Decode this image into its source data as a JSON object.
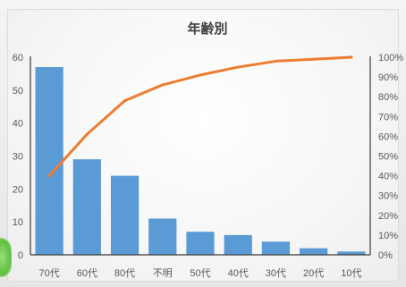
{
  "chart_data": {
    "type": "bar",
    "title": "年齢別",
    "xlabel": "",
    "ylabel": "",
    "categories": [
      "70代",
      "60代",
      "80代",
      "不明",
      "50代",
      "40代",
      "30代",
      "20代",
      "10代"
    ],
    "series": [
      {
        "kind": "bar",
        "values": [
          57,
          29,
          24,
          11,
          7,
          6,
          4,
          2,
          1
        ]
      },
      {
        "kind": "line",
        "axis": "secondary",
        "values": [
          0.4,
          0.61,
          0.78,
          0.86,
          0.91,
          0.95,
          0.98,
          0.99,
          1.0
        ]
      }
    ],
    "ylim": [
      0,
      60
    ],
    "y_ticks": [
      "0",
      "10",
      "20",
      "30",
      "40",
      "50",
      "60"
    ],
    "y2lim": [
      0,
      1
    ],
    "y2_ticks": [
      "0%",
      "10%",
      "20%",
      "30%",
      "40%",
      "50%",
      "60%",
      "70%",
      "80%",
      "90%",
      "100%"
    ],
    "grid": false,
    "legend": "none",
    "colors": {
      "bar": "#5b9bd5",
      "line": "#ed7d31",
      "axis": "#3a3a3a",
      "text": "#595959"
    }
  }
}
